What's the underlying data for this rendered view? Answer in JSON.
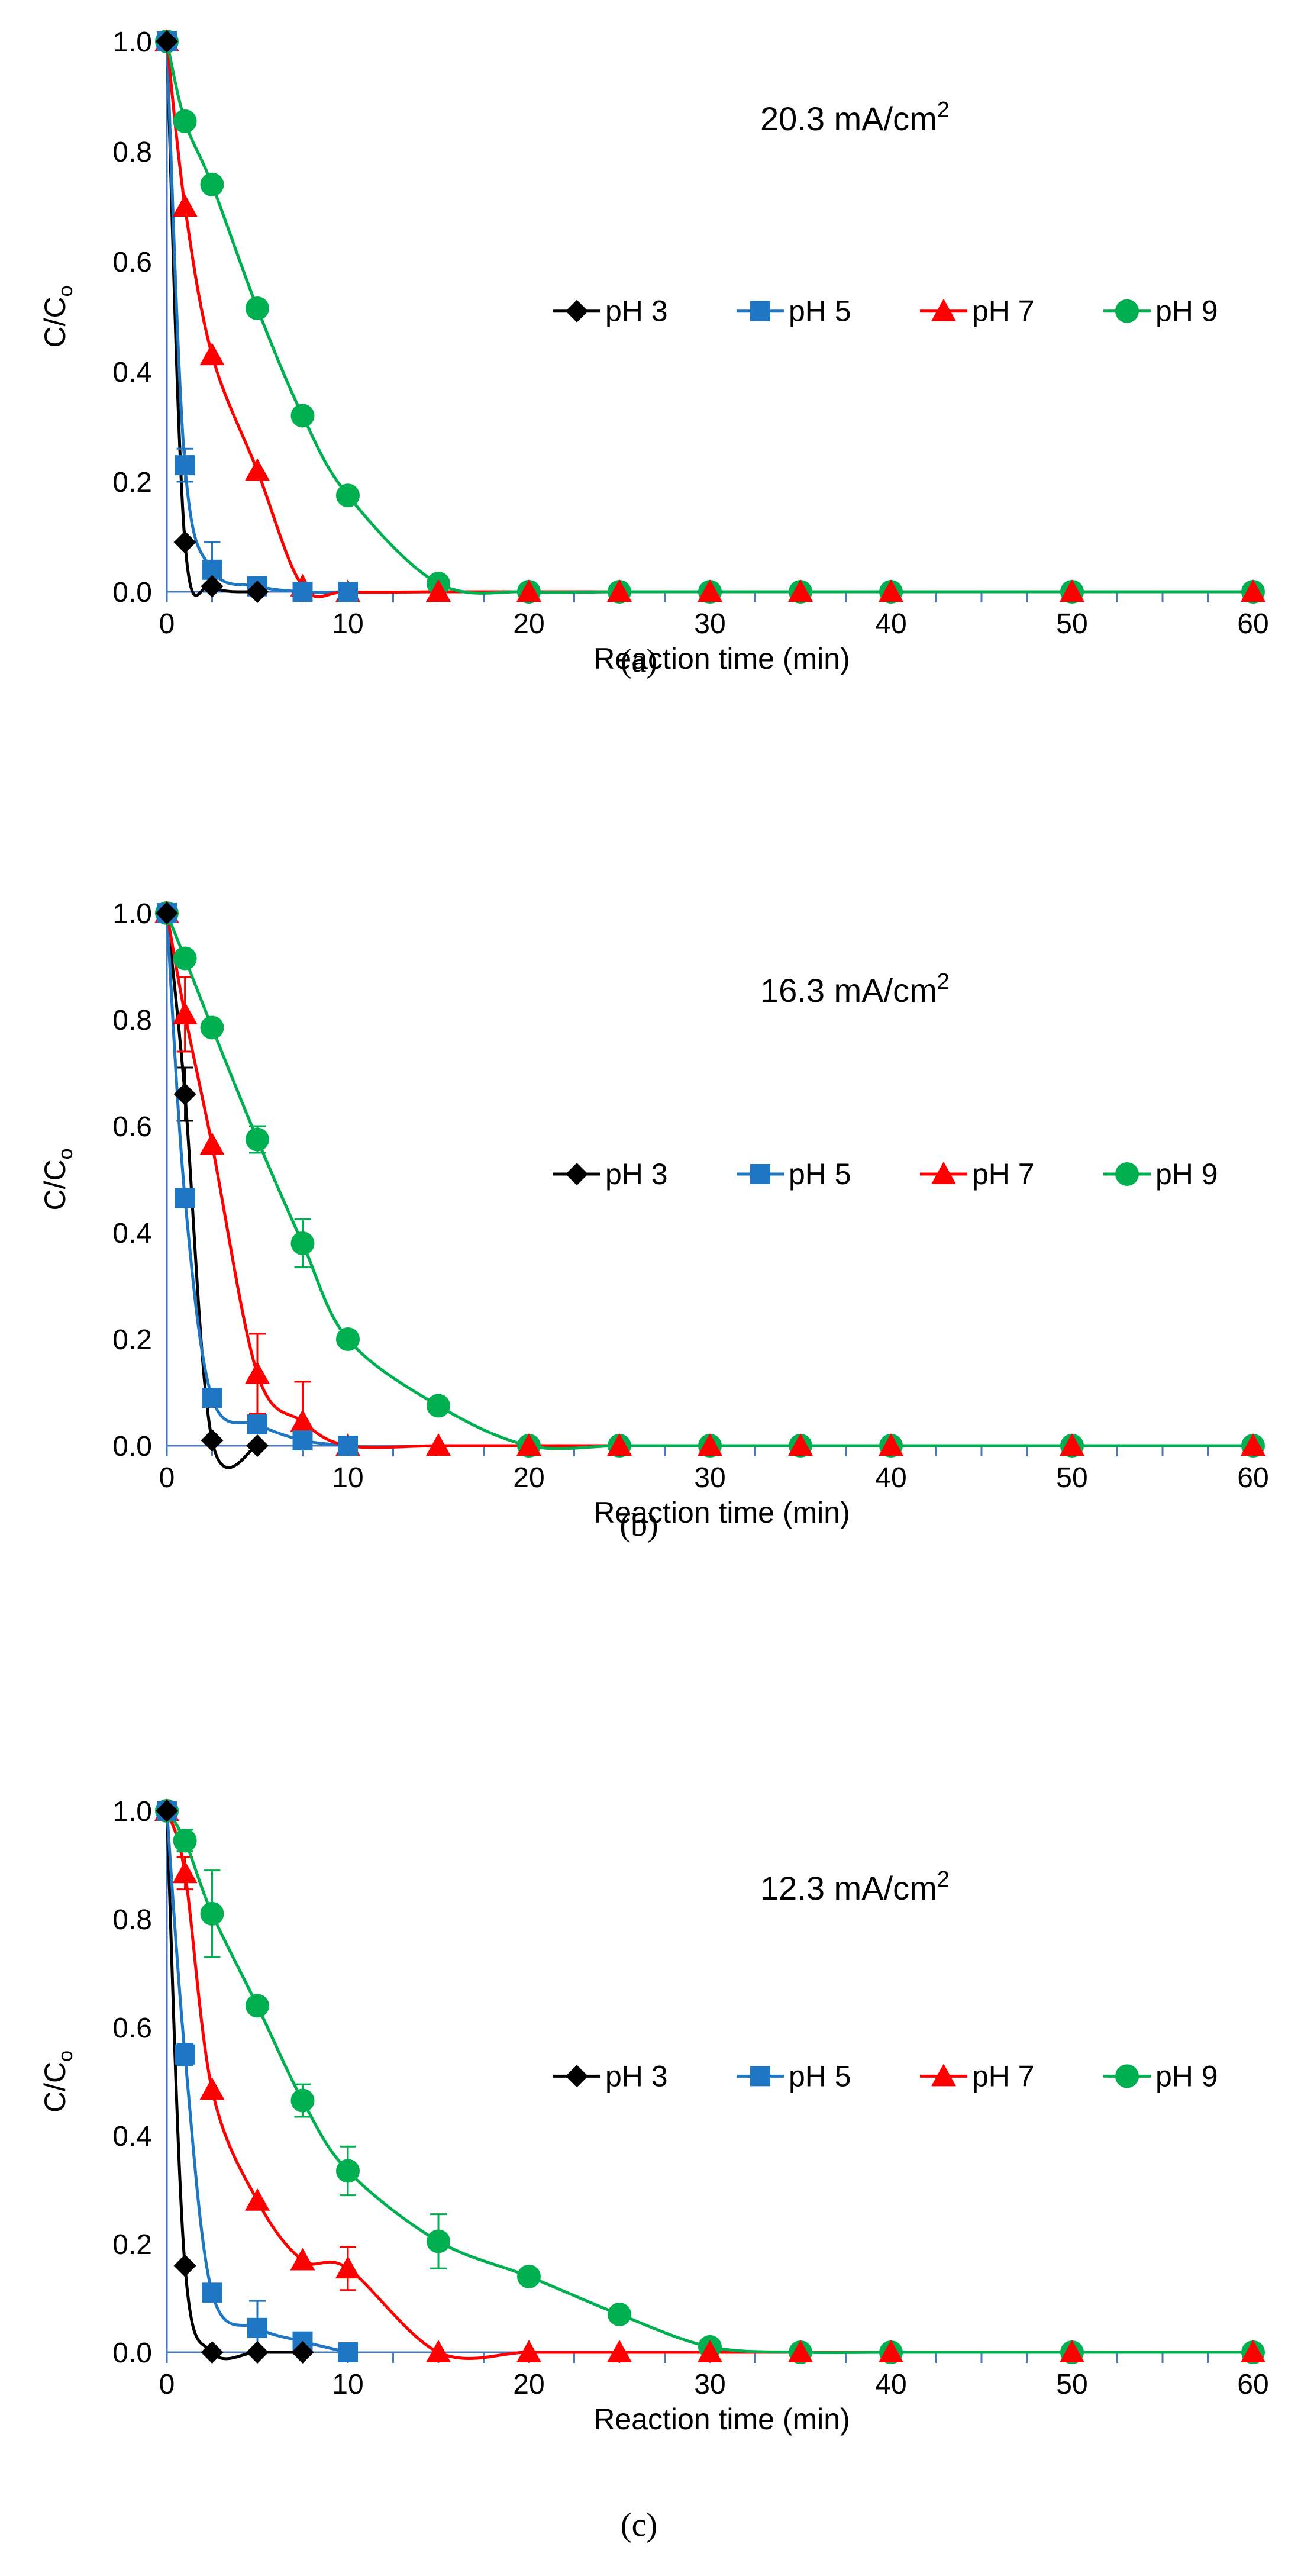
{
  "figure": {
    "panels": [
      "(a)",
      "(b)",
      "(c)"
    ]
  },
  "colors": {
    "pH 3": "#000000",
    "pH 5": "#1f77c4",
    "pH 7": "#ff0000",
    "pH 9": "#00b050",
    "axis": "#4a7ab8"
  },
  "chart_data": [
    {
      "type": "line",
      "panel_label": "(a)",
      "title": "20.3 mA/cm",
      "title_superscript": "2",
      "xlabel": "Reaction time (min)",
      "ylabel_main": "C/C",
      "ylabel_sub": "o",
      "xlim": [
        0,
        60
      ],
      "ylim": [
        0,
        1.0
      ],
      "xticks": [
        0,
        10,
        20,
        30,
        40,
        50,
        60
      ],
      "yticks": [
        "0.0",
        "0.2",
        "0.4",
        "0.6",
        "0.8",
        "1.0"
      ],
      "legend_placement": "center-right",
      "series": [
        {
          "name": "pH 3",
          "marker": "diamond",
          "x": [
            0,
            1,
            2.5,
            5
          ],
          "y": [
            1.0,
            0.09,
            0.01,
            0.0
          ],
          "err": [
            0,
            0,
            0,
            0
          ]
        },
        {
          "name": "pH 5",
          "marker": "square",
          "x": [
            0,
            1,
            2.5,
            5,
            7.5,
            10
          ],
          "y": [
            1.0,
            0.23,
            0.04,
            0.01,
            0.0,
            0.0
          ],
          "err": [
            0,
            0.03,
            0.05,
            0,
            0,
            0
          ]
        },
        {
          "name": "pH 7",
          "marker": "triangle",
          "x": [
            0,
            1,
            2.5,
            5,
            7.5,
            10,
            15,
            20,
            25,
            30,
            35,
            40,
            50,
            60
          ],
          "y": [
            1.0,
            0.7,
            0.43,
            0.22,
            0.01,
            0.0,
            0.0,
            0.0,
            0.0,
            0.0,
            0.0,
            0.0,
            0.0,
            0.0
          ],
          "err": [
            0,
            0,
            0,
            0,
            0,
            0,
            0,
            0,
            0,
            0,
            0,
            0,
            0,
            0
          ]
        },
        {
          "name": "pH 9",
          "marker": "circle",
          "x": [
            0,
            1,
            2.5,
            5,
            7.5,
            10,
            15,
            20,
            25,
            30,
            35,
            40,
            50,
            60
          ],
          "y": [
            1.0,
            0.855,
            0.74,
            0.515,
            0.32,
            0.175,
            0.015,
            0.0,
            0.0,
            0.0,
            0.0,
            0.0,
            0.0,
            0.0
          ],
          "err": [
            0,
            0,
            0,
            0,
            0,
            0,
            0,
            0,
            0,
            0,
            0,
            0,
            0,
            0
          ]
        }
      ]
    },
    {
      "type": "line",
      "panel_label": "(b)",
      "title": "16.3 mA/cm",
      "title_superscript": "2",
      "xlabel": "Reaction time (min)",
      "ylabel_main": "C/C",
      "ylabel_sub": "o",
      "xlim": [
        0,
        60
      ],
      "ylim": [
        0,
        1.0
      ],
      "xticks": [
        0,
        10,
        20,
        30,
        40,
        50,
        60
      ],
      "yticks": [
        "0.0",
        "0.2",
        "0.4",
        "0.6",
        "0.8",
        "1.0"
      ],
      "legend_placement": "center-right",
      "series": [
        {
          "name": "pH 3",
          "marker": "diamond",
          "x": [
            0,
            1,
            2.5,
            5
          ],
          "y": [
            1.0,
            0.66,
            0.01,
            0.0
          ],
          "err": [
            0,
            0.05,
            0,
            0
          ]
        },
        {
          "name": "pH 5",
          "marker": "square",
          "x": [
            0,
            1,
            2.5,
            5,
            7.5,
            10
          ],
          "y": [
            1.0,
            0.465,
            0.09,
            0.04,
            0.01,
            0.0
          ],
          "err": [
            0,
            0,
            0,
            0,
            0,
            0
          ]
        },
        {
          "name": "pH 7",
          "marker": "triangle",
          "x": [
            0,
            1,
            2.5,
            5,
            7.5,
            10,
            15,
            20,
            25,
            30,
            35,
            40,
            50,
            60
          ],
          "y": [
            1.0,
            0.81,
            0.565,
            0.135,
            0.045,
            0.0,
            0.0,
            0.0,
            0.0,
            0.0,
            0.0,
            0.0,
            0.0,
            0.0
          ],
          "err": [
            0,
            0.07,
            0,
            0.075,
            0.075,
            0,
            0,
            0,
            0,
            0,
            0,
            0,
            0,
            0
          ]
        },
        {
          "name": "pH 9",
          "marker": "circle",
          "x": [
            0,
            1,
            2.5,
            5,
            7.5,
            10,
            15,
            20,
            25,
            30,
            35,
            40,
            50,
            60
          ],
          "y": [
            1.0,
            0.915,
            0.785,
            0.575,
            0.38,
            0.2,
            0.075,
            0.0,
            0.0,
            0.0,
            0.0,
            0.0,
            0.0,
            0.0
          ],
          "err": [
            0,
            0,
            0,
            0.025,
            0.045,
            0,
            0,
            0,
            0,
            0,
            0,
            0,
            0,
            0
          ]
        }
      ]
    },
    {
      "type": "line",
      "panel_label": "(c)",
      "title": "12.3 mA/cm",
      "title_superscript": "2",
      "xlabel": "Reaction time (min)",
      "ylabel_main": "C/C",
      "ylabel_sub": "o",
      "xlim": [
        0,
        60
      ],
      "ylim": [
        0,
        1.0
      ],
      "xticks": [
        0,
        10,
        20,
        30,
        40,
        50,
        60
      ],
      "yticks": [
        "0.0",
        "0.2",
        "0.4",
        "0.6",
        "0.8",
        "1.0"
      ],
      "legend_placement": "center-right",
      "series": [
        {
          "name": "pH 3",
          "marker": "diamond",
          "x": [
            0,
            1,
            2.5,
            5,
            7.5
          ],
          "y": [
            1.0,
            0.16,
            0.0,
            0.0,
            0.0
          ],
          "err": [
            0,
            0,
            0,
            0,
            0
          ]
        },
        {
          "name": "pH 5",
          "marker": "square",
          "x": [
            0,
            1,
            2.5,
            5,
            7.5,
            10
          ],
          "y": [
            1.0,
            0.55,
            0.11,
            0.045,
            0.02,
            0.0
          ],
          "err": [
            0,
            0.02,
            0,
            0.05,
            0,
            0
          ]
        },
        {
          "name": "pH 7",
          "marker": "triangle",
          "x": [
            0,
            1,
            2.5,
            5,
            7.5,
            10,
            15,
            20,
            25,
            30,
            35,
            40,
            50,
            60
          ],
          "y": [
            1.0,
            0.885,
            0.485,
            0.28,
            0.17,
            0.155,
            0.0,
            0.0,
            0.0,
            0.0,
            0.0,
            0.0,
            0.0,
            0.0
          ],
          "err": [
            0,
            0.03,
            0,
            0,
            0,
            0.04,
            0,
            0,
            0,
            0,
            0,
            0,
            0,
            0
          ]
        },
        {
          "name": "pH 9",
          "marker": "circle",
          "x": [
            0,
            1,
            2.5,
            5,
            7.5,
            10,
            15,
            20,
            25,
            30,
            35,
            40,
            50,
            60
          ],
          "y": [
            1.0,
            0.945,
            0.81,
            0.64,
            0.465,
            0.335,
            0.205,
            0.14,
            0.07,
            0.01,
            0.0,
            0.0,
            0.0,
            0.0
          ],
          "err": [
            0,
            0.02,
            0.08,
            0,
            0.03,
            0.045,
            0.05,
            0,
            0,
            0,
            0,
            0,
            0,
            0
          ]
        }
      ]
    }
  ]
}
